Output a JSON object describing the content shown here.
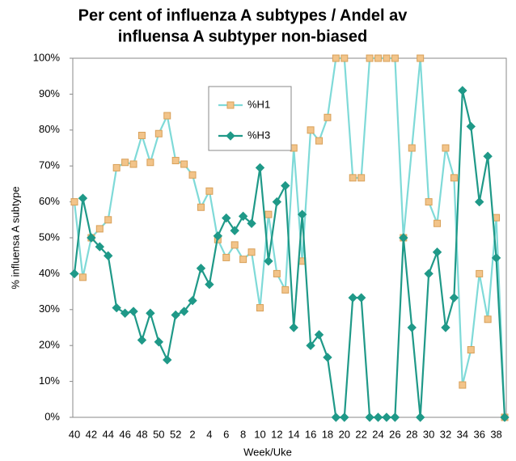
{
  "chart_data": {
    "type": "line",
    "title": [
      "Per cent of influenza A subtypes / Andel av",
      "influensa A subtyper non-biased"
    ],
    "x_label": "Week/Uke",
    "y_label": "% influensa A subtype",
    "categories": [
      "40",
      null,
      "42",
      null,
      "44",
      null,
      "46",
      null,
      "48",
      null,
      "50",
      null,
      "52",
      null,
      "2",
      null,
      "4",
      null,
      "6",
      null,
      "8",
      null,
      "10",
      null,
      "12",
      null,
      "14",
      null,
      "16",
      null,
      "18",
      null,
      "20",
      null,
      "22",
      null,
      "24",
      null,
      "26",
      null,
      "28",
      null,
      "30",
      null,
      "32",
      null,
      "34",
      null,
      "36",
      null,
      "38",
      null
    ],
    "series": [
      {
        "name": "%H1",
        "color": "#7fdad8",
        "marker": "square",
        "marker_color": "#f2c48a",
        "marker_edge": "#d8a058",
        "values": [
          60,
          39,
          50,
          52.5,
          55,
          69.5,
          71,
          70.5,
          78.5,
          71,
          79,
          84,
          71.5,
          70.5,
          67.5,
          58.5,
          63,
          49.5,
          44.5,
          48,
          44,
          46,
          30.5,
          56.5,
          40,
          35.5,
          75,
          43.5,
          80,
          77,
          83.5,
          100,
          100,
          66.7,
          66.7,
          100,
          100,
          100,
          100,
          50,
          75,
          100,
          60,
          54,
          75,
          66.7,
          9,
          18.8,
          40,
          27.3,
          55.6,
          0
        ]
      },
      {
        "name": "%H3",
        "color": "#1f9988",
        "marker": "diamond",
        "marker_color": "#1f9988",
        "marker_edge": "#1f9988",
        "values": [
          40,
          61,
          50,
          47.5,
          45,
          30.5,
          29,
          29.5,
          21.5,
          29,
          21,
          16,
          28.5,
          29.5,
          32.5,
          41.5,
          37,
          50.5,
          55.5,
          52,
          56,
          54,
          69.5,
          43.5,
          60,
          64.5,
          25,
          56.5,
          20,
          23,
          16.7,
          0,
          0,
          33.3,
          33.3,
          0,
          0,
          0,
          0,
          50,
          25,
          0,
          40,
          46,
          25,
          33.3,
          91,
          81,
          60,
          72.7,
          44.4,
          0
        ]
      }
    ],
    "ylim": [
      0,
      100
    ],
    "yticks": [
      {
        "value": 0,
        "label": "0%"
      },
      {
        "value": 10,
        "label": "10%"
      },
      {
        "value": 20,
        "label": "20%"
      },
      {
        "value": 30,
        "label": "30%"
      },
      {
        "value": 40,
        "label": "40%"
      },
      {
        "value": 50,
        "label": "50%"
      },
      {
        "value": 60,
        "label": "60%"
      },
      {
        "value": 70,
        "label": "70%"
      },
      {
        "value": 80,
        "label": "80%"
      },
      {
        "value": 90,
        "label": "90%"
      },
      {
        "value": 100,
        "label": "100%"
      }
    ],
    "grid": false,
    "legend": "upper-left"
  }
}
